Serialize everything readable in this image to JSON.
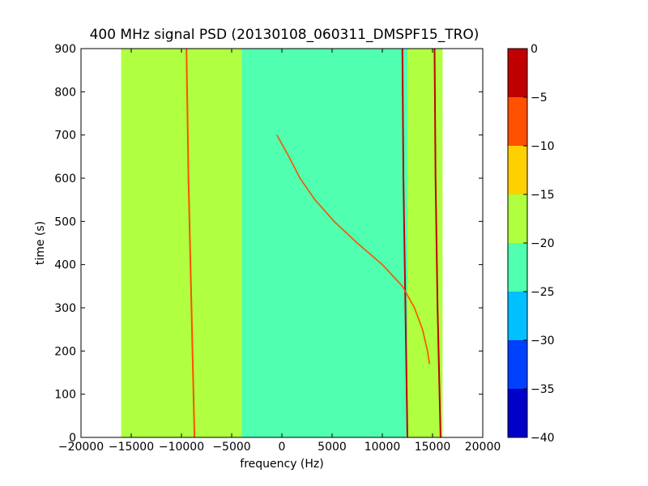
{
  "chart_data": {
    "type": "heatmap",
    "title": "400 MHz signal PSD (20130108_060311_DMSPF15_TRO)",
    "xlabel": "frequency (Hz)",
    "ylabel": "time (s)",
    "xlim": [
      -20000,
      20000
    ],
    "ylim": [
      0,
      900
    ],
    "xticks": [
      -20000,
      -15000,
      -10000,
      -5000,
      0,
      5000,
      10000,
      15000,
      20000
    ],
    "xtick_labels": [
      "−20000",
      "−15000",
      "−10000",
      "−5000",
      "0",
      "5000",
      "10000",
      "15000",
      "20000"
    ],
    "yticks": [
      0,
      100,
      200,
      300,
      400,
      500,
      600,
      700,
      800,
      900
    ],
    "ytick_labels": [
      "0",
      "100",
      "200",
      "300",
      "400",
      "500",
      "600",
      "700",
      "800",
      "900"
    ],
    "data_extent_x": [
      -16000,
      16000
    ],
    "background_levels": [
      {
        "x_range": [
          -16000,
          -4000
        ],
        "level": -17.5
      },
      {
        "x_range": [
          -4000,
          12500
        ],
        "level": -22.5
      },
      {
        "x_range": [
          12500,
          16000
        ],
        "level": -17.5
      }
    ],
    "doppler_trace": {
      "time": [
        700,
        650,
        600,
        550,
        500,
        450,
        400,
        350,
        300,
        250,
        200,
        170
      ],
      "frequency": [
        -500,
        700,
        1800,
        3300,
        5200,
        7500,
        10000,
        12000,
        13200,
        14000,
        14500,
        14700
      ]
    },
    "vertical_lines": [
      {
        "frequency": [
          -9500,
          -9300,
          -9000,
          -8700
        ],
        "time": [
          900,
          600,
          300,
          0
        ],
        "level": -7.5
      },
      {
        "frequency": [
          12000,
          12100,
          12300,
          12500
        ],
        "time": [
          900,
          600,
          300,
          0
        ],
        "level": -2.5
      },
      {
        "frequency": [
          15200,
          15300,
          15500,
          15800
        ],
        "time": [
          900,
          600,
          300,
          0
        ],
        "level": -2.5
      }
    ],
    "colorbar": {
      "levels": [
        -40,
        -35,
        -30,
        -25,
        -20,
        -15,
        -10,
        -5,
        0
      ],
      "tick_labels": [
        "−40",
        "−35",
        "−30",
        "−25",
        "−20",
        "−15",
        "−10",
        "−5",
        "0"
      ],
      "colors": [
        "#0000c8",
        "#0040ff",
        "#00c0ff",
        "#50ffb0",
        "#b0ff40",
        "#ffd000",
        "#ff5000",
        "#c00000"
      ]
    }
  }
}
